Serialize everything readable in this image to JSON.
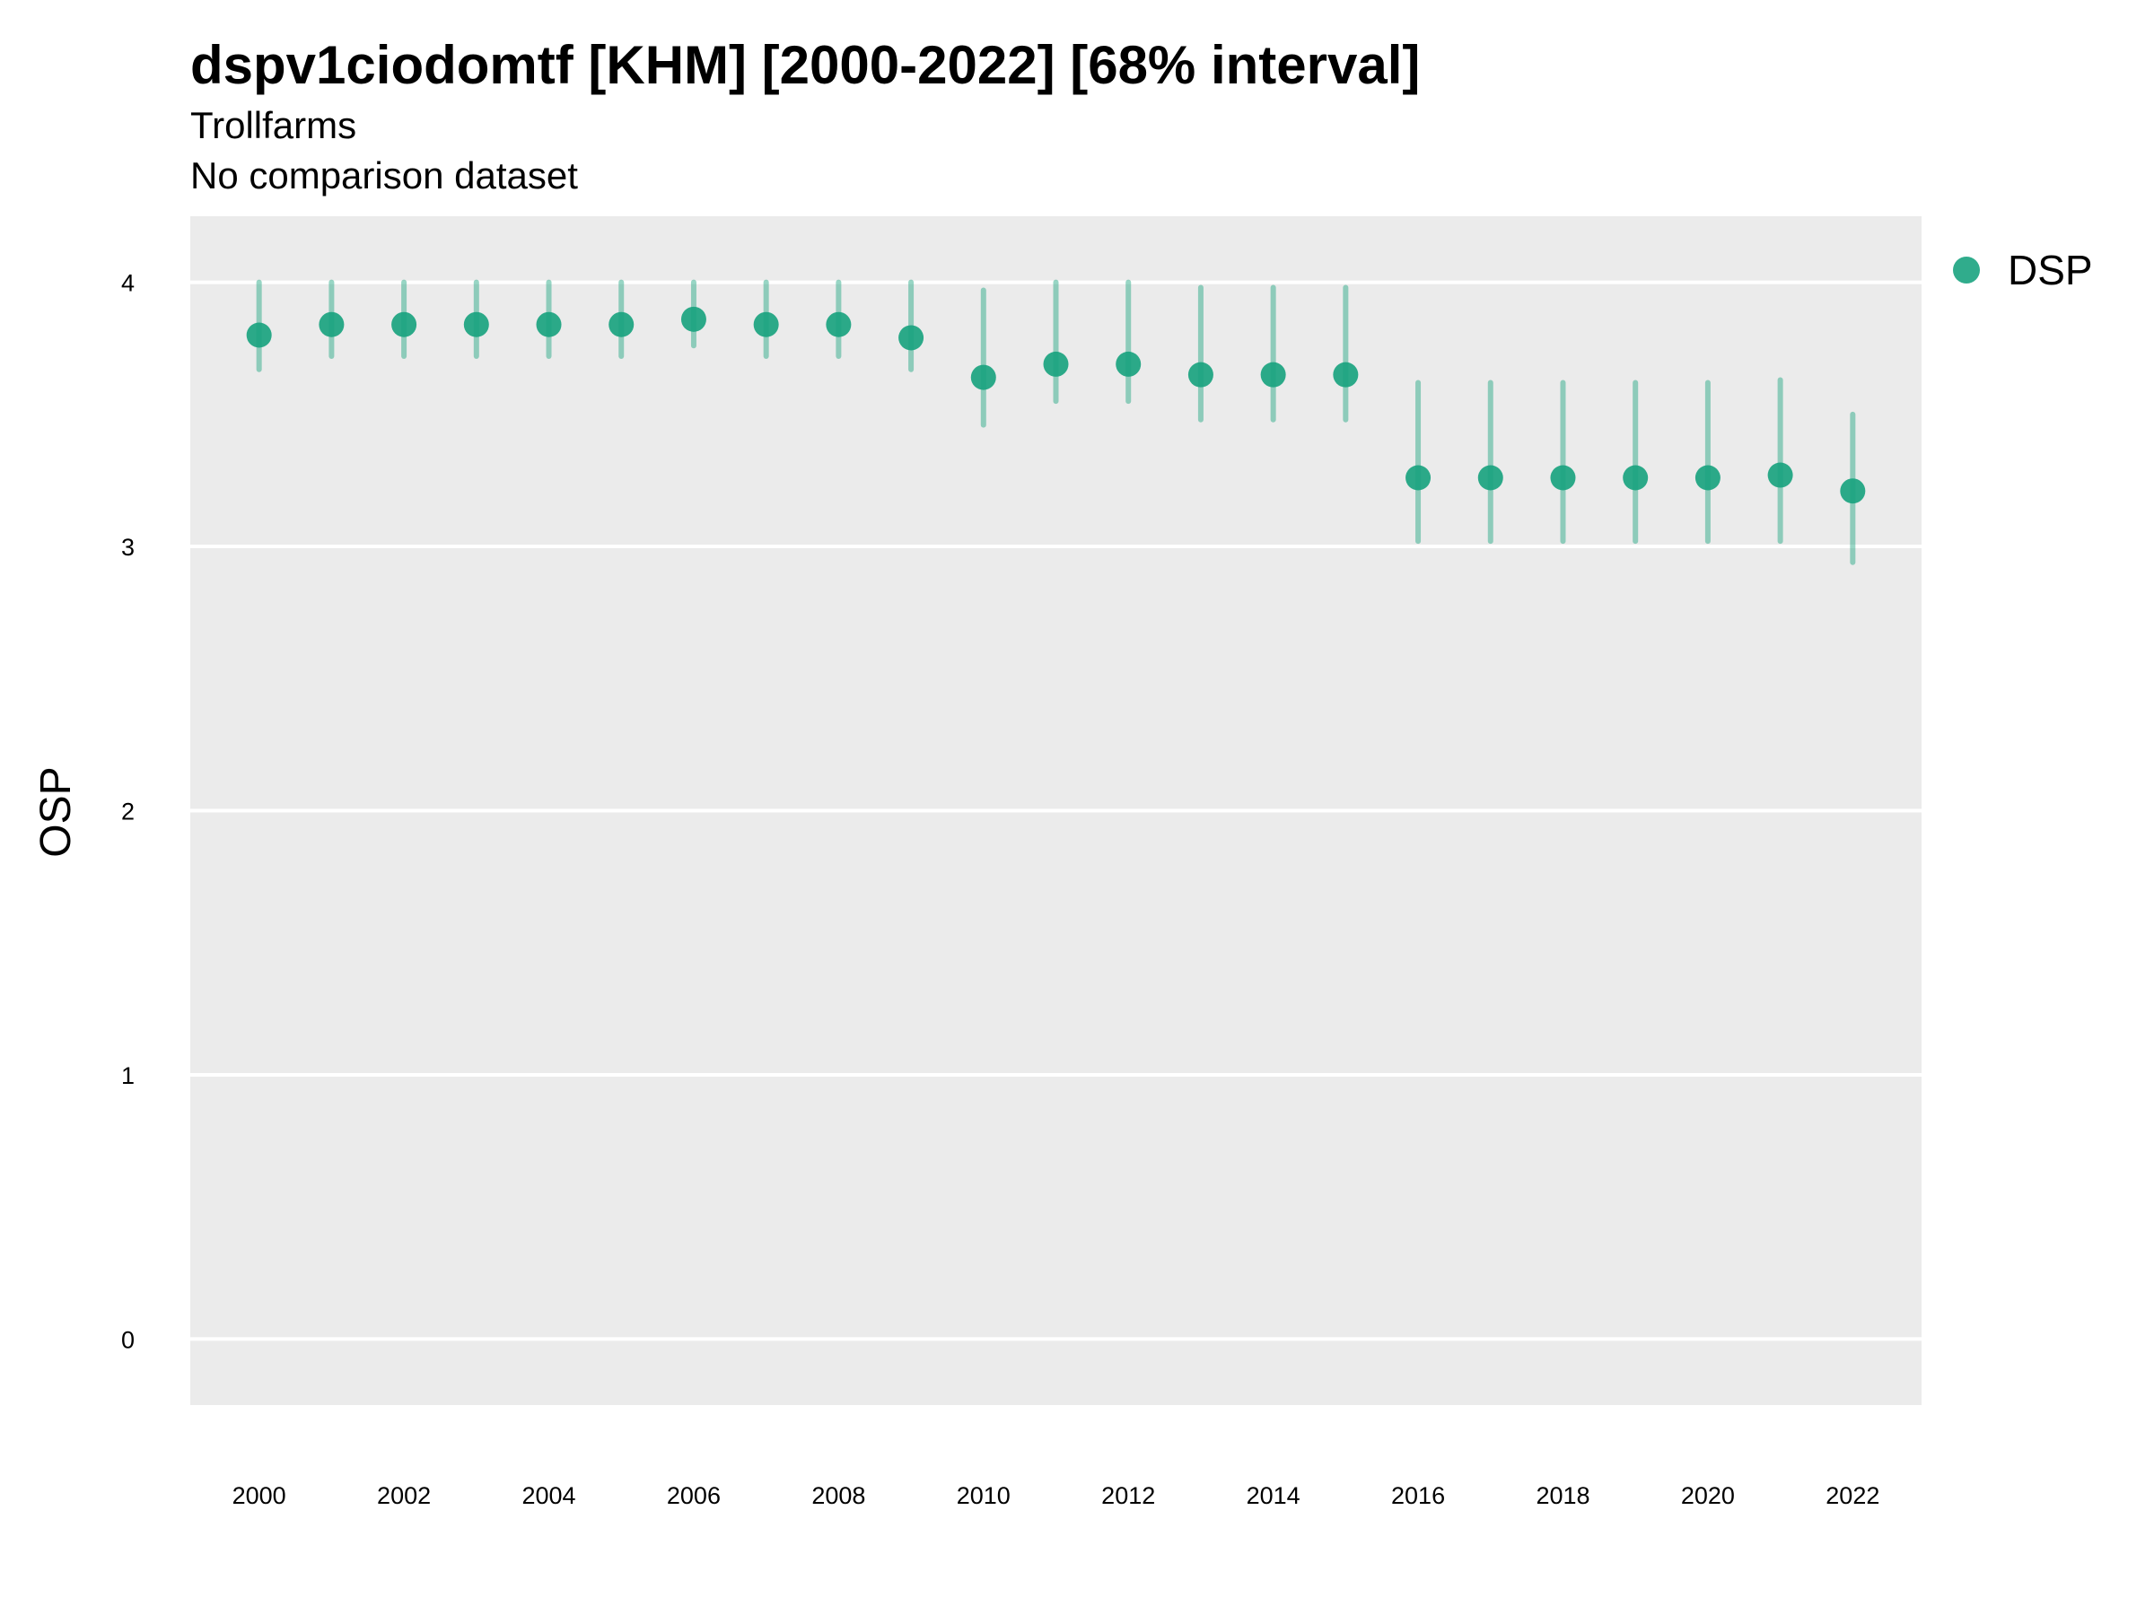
{
  "chart_data": {
    "type": "scatter",
    "title": "dspv1ciodomtf [KHM] [2000-2022] [68% interval]",
    "subtitle": [
      "Trollfarms",
      "No comparison dataset"
    ],
    "xlabel": "",
    "ylabel": "OSP",
    "ylim": [
      -0.25,
      4.25
    ],
    "xlim": [
      1999.05,
      2022.95
    ],
    "grid": "horizontal",
    "legend_position": "right",
    "x_tick_labels": [
      "2000",
      "2002",
      "2004",
      "2006",
      "2008",
      "2010",
      "2012",
      "2014",
      "2016",
      "2018",
      "2020",
      "2022"
    ],
    "y_tick_labels": [
      "0",
      "1",
      "2",
      "3",
      "4"
    ],
    "series": [
      {
        "name": "DSP",
        "color": "#1aa37f",
        "x": [
          2000,
          2001,
          2002,
          2003,
          2004,
          2005,
          2006,
          2007,
          2008,
          2009,
          2010,
          2011,
          2012,
          2013,
          2014,
          2015,
          2016,
          2017,
          2018,
          2019,
          2020,
          2021,
          2022
        ],
        "y": [
          3.8,
          3.84,
          3.84,
          3.84,
          3.84,
          3.84,
          3.86,
          3.84,
          3.84,
          3.79,
          3.64,
          3.69,
          3.69,
          3.65,
          3.65,
          3.65,
          3.26,
          3.26,
          3.26,
          3.26,
          3.26,
          3.27,
          3.21
        ],
        "lower": [
          3.67,
          3.72,
          3.72,
          3.72,
          3.72,
          3.72,
          3.76,
          3.72,
          3.72,
          3.67,
          3.46,
          3.55,
          3.55,
          3.48,
          3.48,
          3.48,
          3.02,
          3.02,
          3.02,
          3.02,
          3.02,
          3.02,
          2.94
        ],
        "upper": [
          4.0,
          4.0,
          4.0,
          4.0,
          4.0,
          4.0,
          4.0,
          4.0,
          4.0,
          4.0,
          3.97,
          4.0,
          4.0,
          3.98,
          3.98,
          3.98,
          3.62,
          3.62,
          3.62,
          3.62,
          3.62,
          3.63,
          3.5
        ]
      }
    ]
  }
}
